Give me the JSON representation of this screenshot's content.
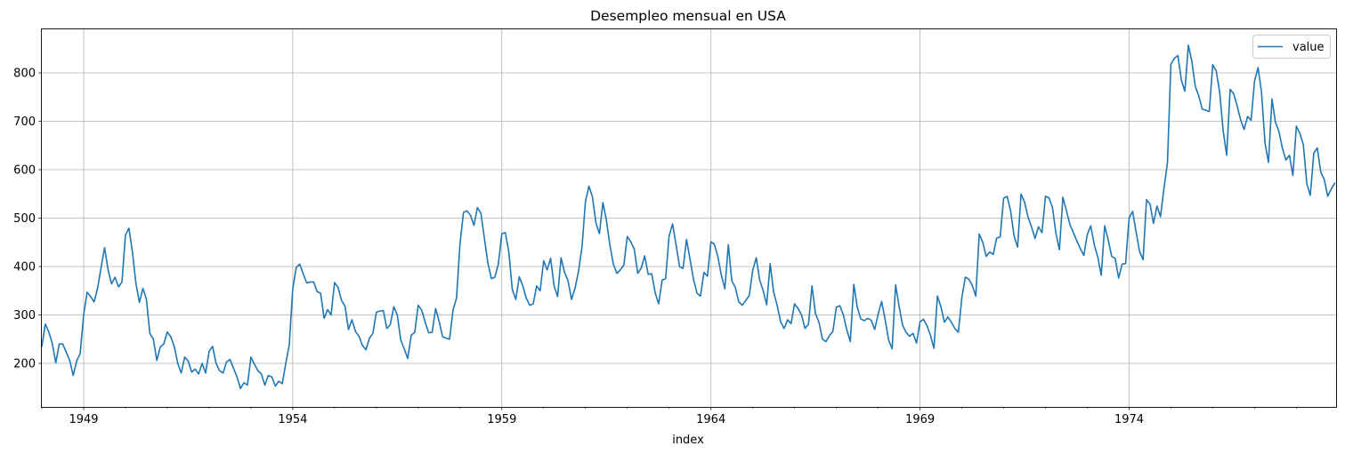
{
  "chart_data": {
    "type": "line",
    "title": "Desempleo mensual en USA",
    "xlabel": "index",
    "ylabel": "",
    "legend": {
      "placement": "top-right",
      "entries": [
        "value"
      ]
    },
    "grid": true,
    "x_start": "1948-01",
    "frequency": "monthly",
    "xlim": [
      1948.0,
      1978.95
    ],
    "ylim": [
      110,
      890
    ],
    "x_major_ticks": [
      {
        "label": "1949",
        "value": 1949.0
      },
      {
        "label": "1954",
        "value": 1954.0
      },
      {
        "label": "1959",
        "value": 1959.0
      },
      {
        "label": "1964",
        "value": 1964.0
      },
      {
        "label": "1969",
        "value": 1969.0
      },
      {
        "label": "1974",
        "value": 1974.0
      }
    ],
    "y_ticks": [
      200,
      300,
      400,
      500,
      600,
      700,
      800
    ],
    "series": [
      {
        "name": "value",
        "color": "#1f77b4",
        "values": [
          235,
          281,
          265,
          241,
          201,
          240,
          240,
          223,
          206,
          175,
          205,
          220,
          300,
          347,
          338,
          327,
          355,
          398,
          439,
          394,
          364,
          378,
          358,
          368,
          465,
          479,
          430,
          365,
          326,
          355,
          333,
          262,
          250,
          206,
          234,
          240,
          265,
          255,
          235,
          200,
          180,
          213,
          205,
          182,
          188,
          178,
          200,
          180,
          225,
          235,
          200,
          185,
          180,
          203,
          208,
          190,
          172,
          148,
          160,
          155,
          213,
          198,
          185,
          178,
          155,
          175,
          172,
          153,
          163,
          158,
          200,
          238,
          354,
          398,
          405,
          385,
          366,
          368,
          368,
          348,
          345,
          293,
          311,
          300,
          367,
          357,
          330,
          318,
          270,
          290,
          266,
          256,
          237,
          228,
          252,
          262,
          306,
          308,
          309,
          272,
          280,
          317,
          300,
          248,
          230,
          210,
          258,
          264,
          320,
          310,
          285,
          263,
          264,
          313,
          287,
          255,
          252,
          250,
          310,
          335,
          447,
          512,
          515,
          506,
          485,
          522,
          510,
          458,
          407,
          375,
          378,
          405,
          468,
          470,
          430,
          353,
          332,
          379,
          360,
          335,
          320,
          323,
          360,
          350,
          412,
          393,
          417,
          360,
          338,
          418,
          388,
          371,
          332,
          355,
          390,
          440,
          535,
          566,
          544,
          490,
          468,
          532,
          496,
          445,
          405,
          386,
          393,
          403,
          462,
          451,
          436,
          386,
          397,
          422,
          384,
          385,
          346,
          323,
          372,
          375,
          463,
          488,
          445,
          400,
          396,
          456,
          415,
          374,
          345,
          339,
          388,
          380,
          451,
          446,
          420,
          382,
          354,
          445,
          370,
          357,
          327,
          320,
          330,
          340,
          392,
          418,
          372,
          350,
          321,
          406,
          347,
          320,
          286,
          272,
          290,
          282,
          323,
          313,
          300,
          272,
          281,
          360,
          303,
          285,
          250,
          245,
          257,
          266,
          316,
          319,
          300,
          269,
          245,
          363,
          316,
          292,
          288,
          293,
          289,
          270,
          302,
          328,
          290,
          248,
          230,
          362,
          318,
          279,
          264,
          256,
          262,
          242,
          286,
          291,
          278,
          258,
          231,
          339,
          317,
          285,
          296,
          285,
          272,
          264,
          335,
          378,
          374,
          361,
          339,
          467,
          450,
          421,
          430,
          425,
          459,
          461,
          541,
          545,
          515,
          463,
          440,
          550,
          533,
          502,
          482,
          458,
          482,
          470,
          545,
          542,
          522,
          469,
          435,
          543,
          516,
          487,
          470,
          453,
          437,
          423,
          466,
          484,
          445,
          420,
          382,
          484,
          455,
          421,
          417,
          376,
          405,
          406,
          500,
          514,
          472,
          431,
          414,
          538,
          529,
          489,
          525,
          503,
          561,
          614,
          818,
          830,
          836,
          785,
          762,
          857,
          824,
          772,
          752,
          725,
          723,
          720,
          817,
          804,
          760,
          680,
          630,
          766,
          757,
          732,
          703,
          683,
          710,
          702,
          783,
          811,
          760,
          655,
          615,
          746,
          698,
          679,
          644,
          620,
          630,
          588,
          690,
          675,
          652,
          571,
          547,
          634,
          645,
          595,
          580,
          545,
          560,
          572
        ]
      }
    ]
  }
}
